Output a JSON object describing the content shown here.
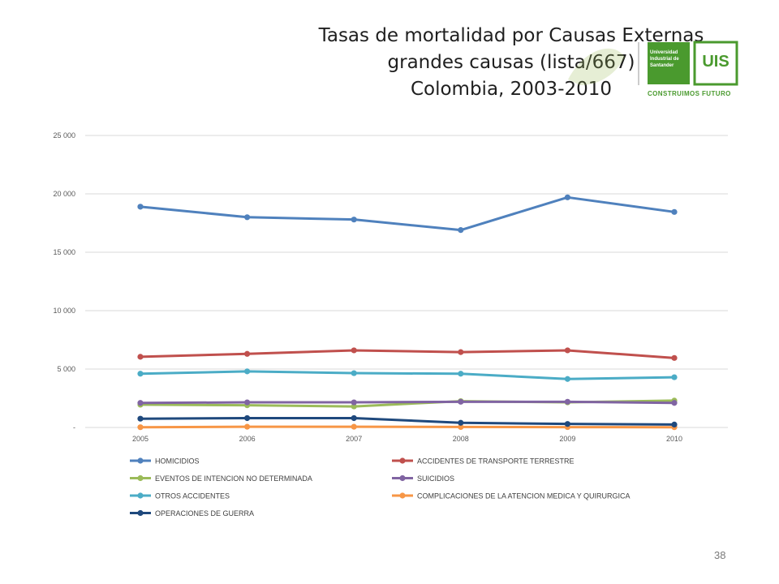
{
  "slide": {
    "title_lines": [
      "Tasas de mortalidad por Causas Externas",
      "grandes causas (lista/667)",
      "Colombia, 2003-2010"
    ],
    "page_number": "38"
  },
  "logo": {
    "line1": "Universidad",
    "line2": "Industrial de",
    "line3": "Santander",
    "monogram": "UIS",
    "slogan": "CONSTRUIMOS FUTURO",
    "color": "#4a9a2e"
  },
  "chart_data": {
    "type": "line",
    "x": [
      "2005",
      "2006",
      "2007",
      "2008",
      "2009",
      "2010"
    ],
    "ylim": [
      0,
      25000
    ],
    "yticks": [
      0,
      5000,
      10000,
      15000,
      20000,
      25000
    ],
    "ytick_labels": [
      "-",
      "5 000",
      "10 000",
      "15 000",
      "20 000",
      "25 000"
    ],
    "grid": true,
    "legend_position": "bottom",
    "series": [
      {
        "name": "HOMICIDIOS",
        "color": "#4f81bd",
        "values": [
          18900,
          18000,
          17800,
          16900,
          19700,
          18450
        ]
      },
      {
        "name": "ACCIDENTES DE TRANSPORTE TERRESTRE",
        "color": "#c0504d",
        "values": [
          6050,
          6300,
          6600,
          6450,
          6600,
          5950
        ]
      },
      {
        "name": "EVENTOS DE INTENCION NO DETERMINADA",
        "color": "#9bbb59",
        "values": [
          1950,
          1900,
          1800,
          2250,
          2150,
          2300
        ]
      },
      {
        "name": "SUICIDIOS",
        "color": "#8064a2",
        "values": [
          2100,
          2150,
          2150,
          2200,
          2200,
          2100
        ]
      },
      {
        "name": "OTROS ACCIDENTES",
        "color": "#4bacc6",
        "values": [
          4600,
          4800,
          4650,
          4600,
          4150,
          4300
        ]
      },
      {
        "name": "COMPLICACIONES DE LA ATENCION MEDICA Y QUIRURGICA",
        "color": "#f79646",
        "values": [
          20,
          60,
          60,
          40,
          30,
          20
        ]
      },
      {
        "name": "OPERACIONES DE GUERRA",
        "color": "#1f497d",
        "values": [
          750,
          800,
          800,
          400,
          300,
          250
        ]
      }
    ]
  }
}
